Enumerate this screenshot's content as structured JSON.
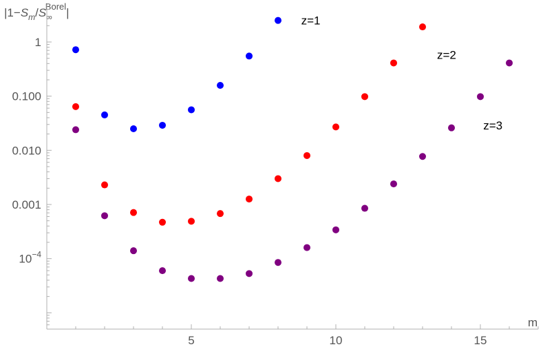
{
  "chart_data": {
    "type": "scatter",
    "ylabel": {
      "prefix": "|1−",
      "s1": "S",
      "s1_sub": "m",
      "slash": "/",
      "s2": "S",
      "s2_sub": "∞",
      "s2_sup": "Borel",
      "suffix": "|"
    },
    "xlabel": "m",
    "yscale": "log",
    "xlim": [
      0,
      17
    ],
    "ylim": [
      5e-06,
      5
    ],
    "x_ticks": [
      {
        "value": 5,
        "label": "5"
      },
      {
        "value": 10,
        "label": "10"
      },
      {
        "value": 15,
        "label": "15"
      }
    ],
    "y_ticks": [
      {
        "value": 1,
        "label": "1",
        "base": "",
        "exp": ""
      },
      {
        "value": 0.1,
        "label": "0.100",
        "base": "",
        "exp": ""
      },
      {
        "value": 0.01,
        "label": "0.010",
        "base": "",
        "exp": ""
      },
      {
        "value": 0.001,
        "label": "0.001",
        "base": "",
        "exp": ""
      },
      {
        "value": 0.0001,
        "label": "",
        "base": "10",
        "exp": "−4"
      }
    ],
    "series": [
      {
        "name": "z=1",
        "color": "#0000ff",
        "points": [
          [
            1,
            0.72
          ],
          [
            2,
            0.045
          ],
          [
            3,
            0.025
          ],
          [
            4,
            0.029
          ],
          [
            5,
            0.056
          ],
          [
            6,
            0.158
          ],
          [
            7,
            0.55
          ],
          [
            8,
            2.5
          ]
        ]
      },
      {
        "name": "z=2",
        "color": "#ff0000",
        "points": [
          [
            1,
            0.064
          ],
          [
            2,
            0.0023
          ],
          [
            3,
            0.00071
          ],
          [
            4,
            0.00047
          ],
          [
            5,
            0.00049
          ],
          [
            6,
            0.00068
          ],
          [
            7,
            0.00126
          ],
          [
            8,
            0.003
          ],
          [
            9,
            0.008
          ],
          [
            10,
            0.027
          ],
          [
            11,
            0.098
          ],
          [
            12,
            0.41
          ],
          [
            13,
            1.9
          ]
        ]
      },
      {
        "name": "z=3",
        "color": "#800080",
        "points": [
          [
            1,
            0.024
          ],
          [
            2,
            0.00062
          ],
          [
            3,
            0.00014
          ],
          [
            4,
            6e-05
          ],
          [
            5,
            4.3e-05
          ],
          [
            6,
            4.3e-05
          ],
          [
            7,
            5.3e-05
          ],
          [
            8,
            8.5e-05
          ],
          [
            9,
            0.00016
          ],
          [
            10,
            0.00034
          ],
          [
            11,
            0.00085
          ],
          [
            12,
            0.0024
          ],
          [
            13,
            0.0077
          ],
          [
            14,
            0.026
          ],
          [
            15,
            0.098
          ],
          [
            16,
            0.41
          ]
        ]
      }
    ],
    "annotations": [
      {
        "text": "z=1",
        "x": 8.8,
        "y": 2.5
      },
      {
        "text": "z=2",
        "x": 13.5,
        "y": 0.58
      },
      {
        "text": "z=3",
        "x": 15.1,
        "y": 0.029
      }
    ]
  }
}
